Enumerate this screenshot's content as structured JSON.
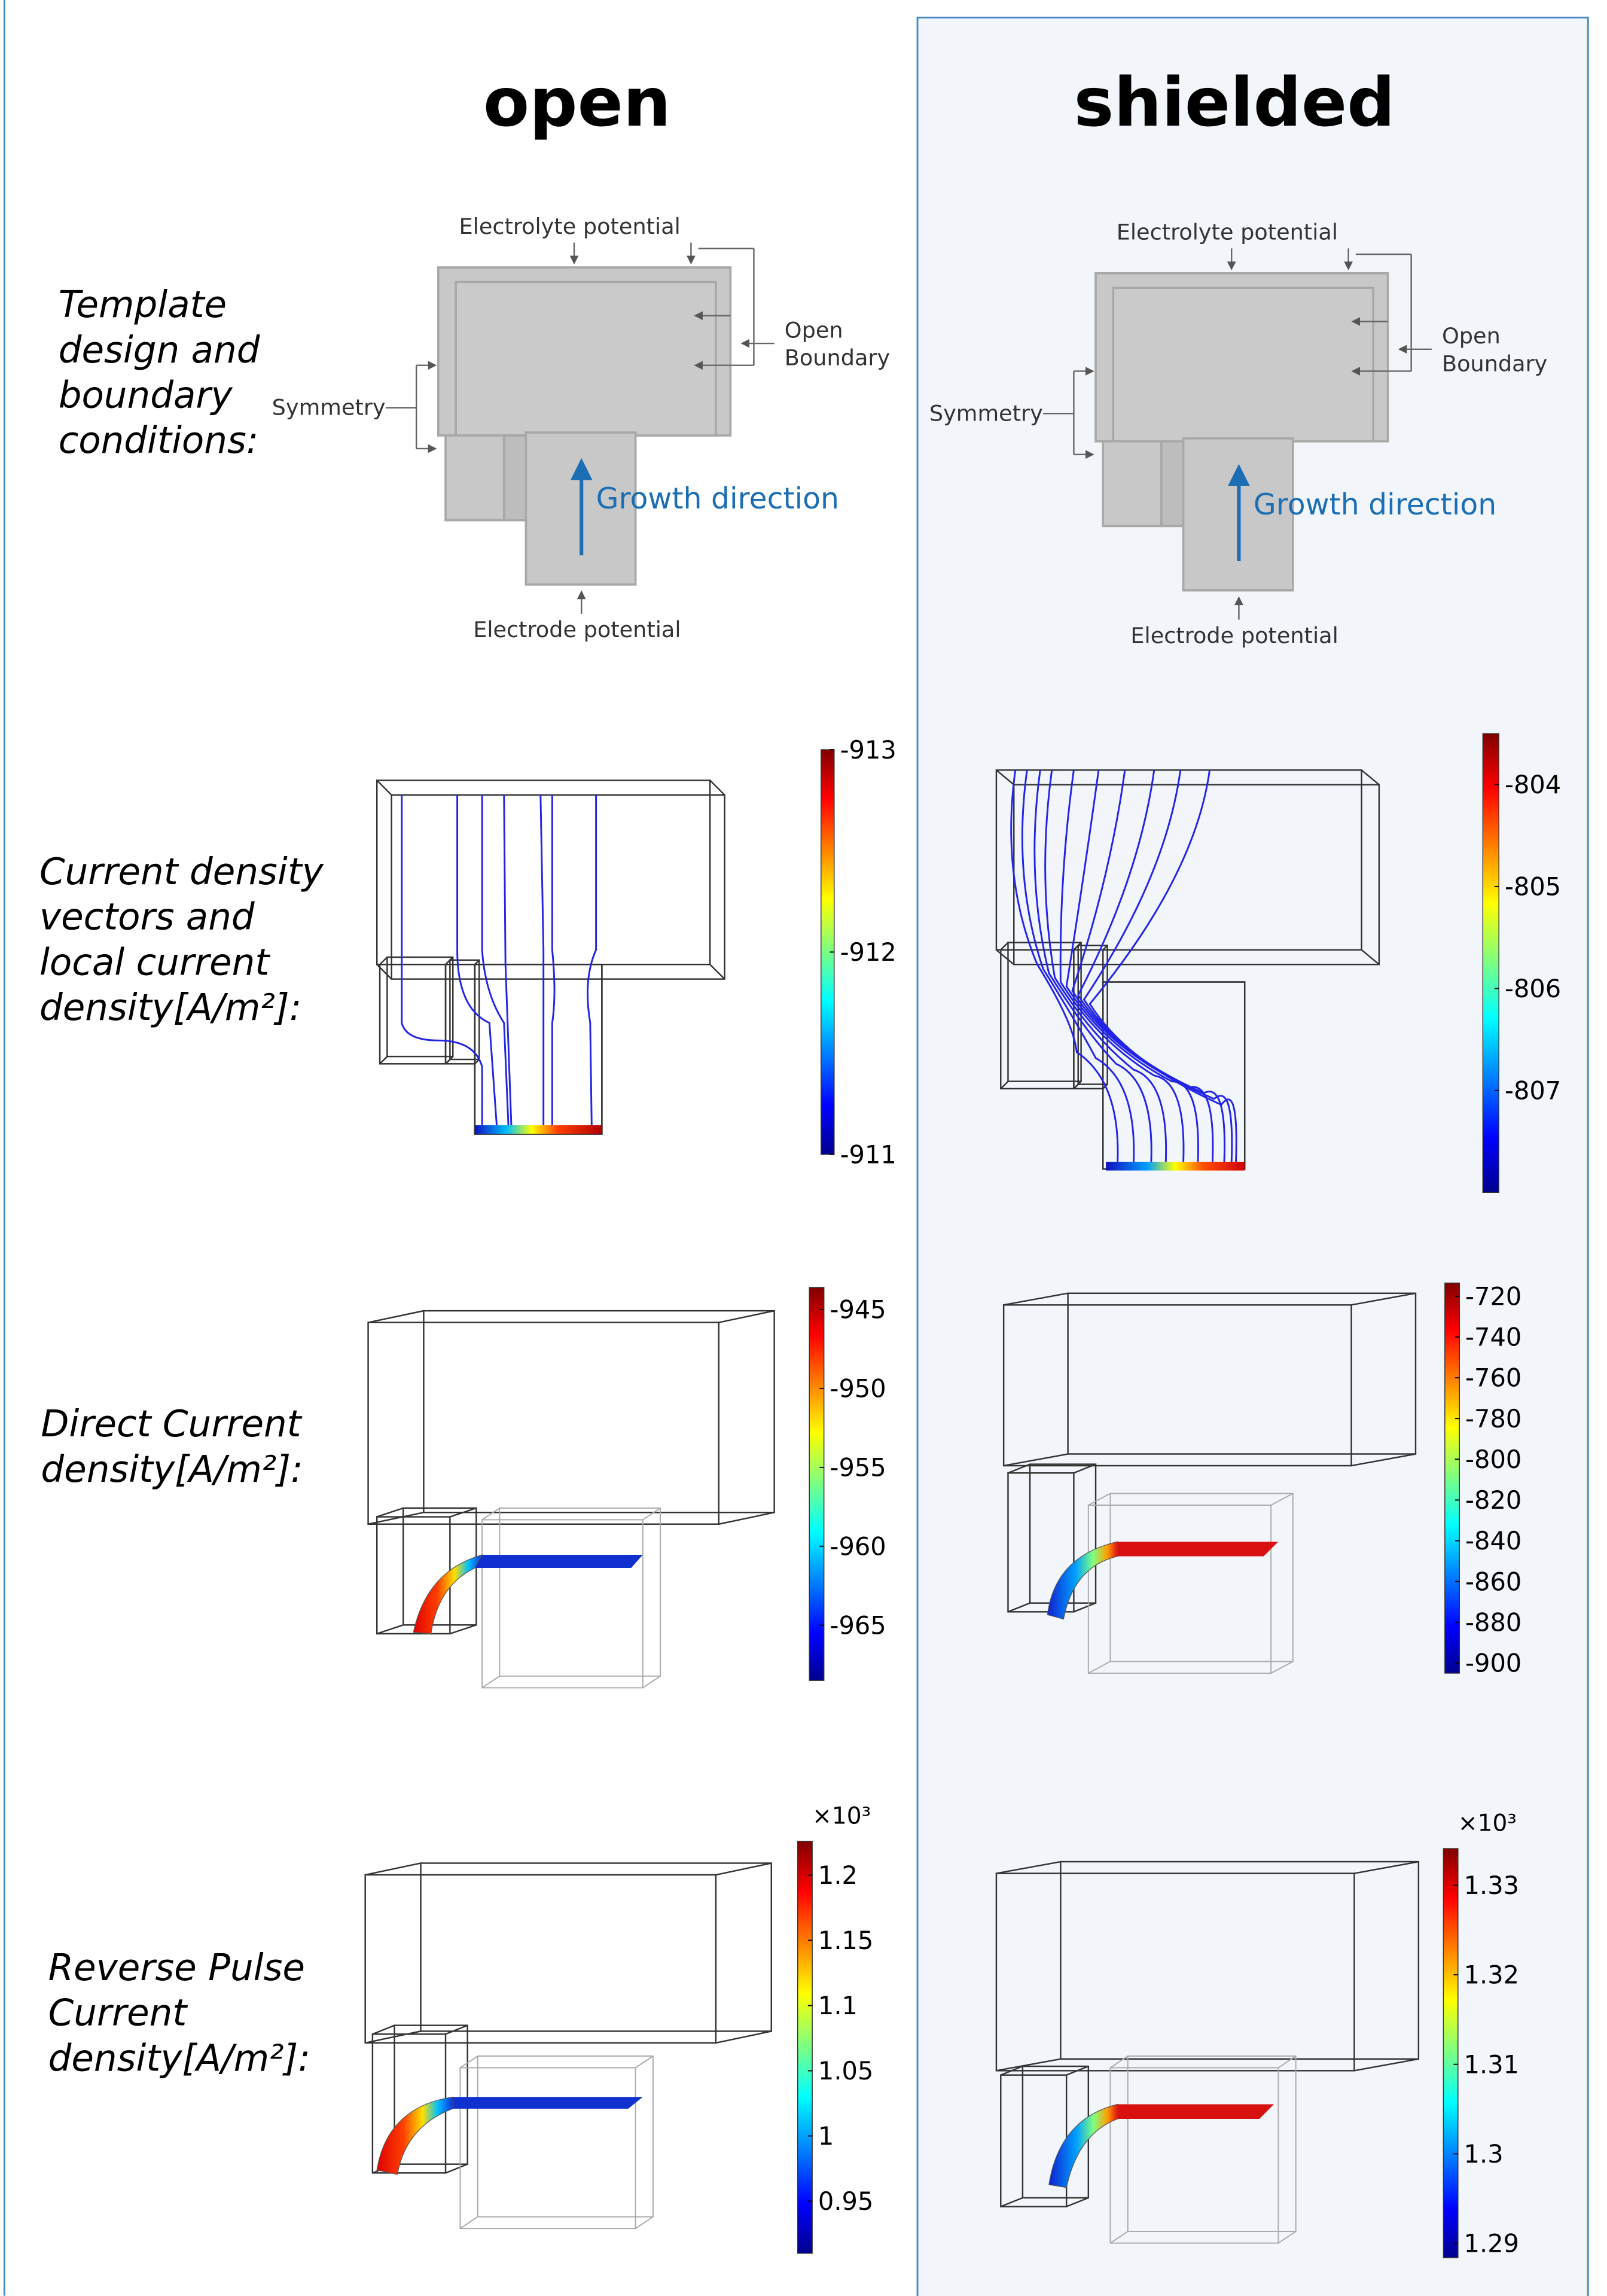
{
  "columns": [
    {
      "title": "open",
      "diagram": {
        "electrolyte": "Electrolyte potential",
        "open_boundary": [
          "Open",
          "Boundary"
        ],
        "symmetry": "Symmetry",
        "growth": "Growth direction",
        "electrode": "Electrode potential"
      },
      "colorbars": [
        {
          "range": [
            -911,
            -913
          ],
          "ticks": [
            -913,
            -912,
            -911
          ]
        },
        {
          "range": [
            -968.5,
            -943.6
          ],
          "ticks": [
            -945,
            -950,
            -955,
            -960,
            -965
          ]
        },
        {
          "range": [
            0.91,
            1.226
          ],
          "ticks": [
            1.2,
            1.15,
            1.1,
            1.05,
            1,
            0.95
          ],
          "multiplier": "×10³"
        }
      ]
    },
    {
      "title": "shielded",
      "diagram": {
        "electrolyte": "Electrolyte potential",
        "open_boundary": [
          "Open",
          "Boundary"
        ],
        "symmetry": "Symmetry",
        "growth": "Growth direction",
        "electrode": "Electrode potential"
      },
      "colorbars": [
        {
          "range": [
            -808,
            -803.5
          ],
          "ticks": [
            -804,
            -805,
            -806,
            -807
          ]
        },
        {
          "range": [
            -905,
            -713.5
          ],
          "ticks": [
            -720,
            -740,
            -760,
            -780,
            -800,
            -820,
            -840,
            -860,
            -880,
            -900
          ]
        },
        {
          "range": [
            1.2884,
            1.3341
          ],
          "ticks": [
            1.33,
            1.32,
            1.31,
            1.3,
            1.29
          ],
          "multiplier": "×10³"
        }
      ]
    }
  ],
  "rows": [
    {
      "label": [
        "Template",
        "design and",
        "boundary",
        "conditions:"
      ]
    },
    {
      "label": [
        "Current density",
        "vectors and",
        "local current",
        "density[A/m²]:"
      ]
    },
    {
      "label": [
        "Direct Current",
        "density[A/m²]:"
      ]
    },
    {
      "label": [
        "Reverse Pulse",
        "Current",
        "density[A/m²]:"
      ]
    }
  ]
}
